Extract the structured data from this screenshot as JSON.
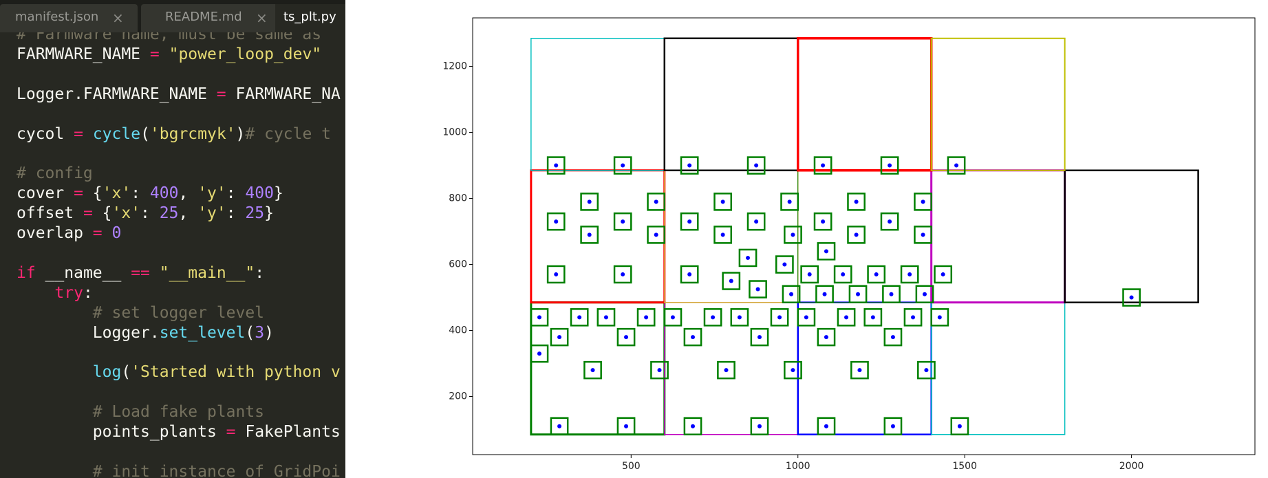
{
  "editor": {
    "tabs": [
      "manifest.json",
      "README.md",
      "ts_plt.py"
    ],
    "lines": [
      [
        [
          "# Farmware name, must be same as",
          "#75715e"
        ]
      ],
      [
        [
          "FARMWARE_NAME ",
          "#f8f8f2"
        ],
        [
          "=",
          "#f92672"
        ],
        [
          " ",
          "#f8f8f2"
        ],
        [
          "\"power_loop_dev\"",
          "#e6db74"
        ]
      ],
      [],
      [
        [
          "Logger.FARMWARE_NAME ",
          "#f8f8f2"
        ],
        [
          "=",
          "#f92672"
        ],
        [
          " FARMWARE_NA",
          "#f8f8f2"
        ]
      ],
      [],
      [
        [
          "cycol ",
          "#f8f8f2"
        ],
        [
          "=",
          "#f92672"
        ],
        [
          " ",
          "#f8f8f2"
        ],
        [
          "cycle",
          "#66d9ef"
        ],
        [
          "(",
          "#f8f8f2"
        ],
        [
          "'bgrcmyk'",
          "#e6db74"
        ],
        [
          ")",
          "#f8f8f2"
        ],
        [
          "# cycle t",
          "#75715e"
        ]
      ],
      [],
      [
        [
          "# config",
          "#75715e"
        ]
      ],
      [
        [
          "cover ",
          "#f8f8f2"
        ],
        [
          "=",
          "#f92672"
        ],
        [
          " {",
          "#f8f8f2"
        ],
        [
          "'x'",
          "#e6db74"
        ],
        [
          ": ",
          "#f8f8f2"
        ],
        [
          "400",
          "#ae81ff"
        ],
        [
          ", ",
          "#f8f8f2"
        ],
        [
          "'y'",
          "#e6db74"
        ],
        [
          ": ",
          "#f8f8f2"
        ],
        [
          "400",
          "#ae81ff"
        ],
        [
          "}",
          "#f8f8f2"
        ]
      ],
      [
        [
          "offset ",
          "#f8f8f2"
        ],
        [
          "=",
          "#f92672"
        ],
        [
          " {",
          "#f8f8f2"
        ],
        [
          "'x'",
          "#e6db74"
        ],
        [
          ": ",
          "#f8f8f2"
        ],
        [
          "25",
          "#ae81ff"
        ],
        [
          ", ",
          "#f8f8f2"
        ],
        [
          "'y'",
          "#e6db74"
        ],
        [
          ": ",
          "#f8f8f2"
        ],
        [
          "25",
          "#ae81ff"
        ],
        [
          "}",
          "#f8f8f2"
        ]
      ],
      [
        [
          "overlap ",
          "#f8f8f2"
        ],
        [
          "=",
          "#f92672"
        ],
        [
          " ",
          "#f8f8f2"
        ],
        [
          "0",
          "#ae81ff"
        ]
      ],
      [],
      [
        [
          "if",
          "#f92672"
        ],
        [
          " __name__ ",
          "#f8f8f2"
        ],
        [
          "==",
          "#f92672"
        ],
        [
          " ",
          "#f8f8f2"
        ],
        [
          "\"__main__\"",
          "#e6db74"
        ],
        [
          ":",
          "#f8f8f2"
        ]
      ],
      [
        [
          "    ",
          "#f8f8f2"
        ],
        [
          "try",
          "#f92672"
        ],
        [
          ":",
          "#f8f8f2"
        ]
      ],
      [
        [
          "        # set logger level",
          "#75715e"
        ]
      ],
      [
        [
          "        Logger.",
          "#f8f8f2"
        ],
        [
          "set_level",
          "#66d9ef"
        ],
        [
          "(",
          "#f8f8f2"
        ],
        [
          "3",
          "#ae81ff"
        ],
        [
          ")",
          "#f8f8f2"
        ]
      ],
      [],
      [
        [
          "        ",
          "#f8f8f2"
        ],
        [
          "log",
          "#66d9ef"
        ],
        [
          "(",
          "#f8f8f2"
        ],
        [
          "'Started with python v",
          "#e6db74"
        ]
      ],
      [],
      [
        [
          "        # Load fake plants",
          "#75715e"
        ]
      ],
      [
        [
          "        points_plants ",
          "#f8f8f2"
        ],
        [
          "=",
          "#f92672"
        ],
        [
          " FakePlants",
          "#f8f8f2"
        ]
      ],
      [],
      [
        [
          "        # init instance of GridPoi",
          "#75715e"
        ]
      ]
    ]
  },
  "chart_data": {
    "type": "scatter",
    "xlim": [
      25,
      2370
    ],
    "ylim": [
      24,
      1347
    ],
    "xticks": [
      500,
      1000,
      1500,
      2000
    ],
    "yticks": [
      200,
      400,
      600,
      800,
      1000,
      1200
    ],
    "color": "#0000ff",
    "marker_box": {
      "size": 50,
      "color": "#008000"
    },
    "x": [
      275,
      475,
      675,
      875,
      1075,
      1275,
      1475,
      375,
      575,
      775,
      975,
      1175,
      1375,
      275,
      475,
      675,
      875,
      1075,
      1275,
      375,
      575,
      775,
      985,
      1175,
      1375,
      1085,
      850,
      960,
      275,
      475,
      675,
      1035,
      1135,
      1235,
      1335,
      1435,
      800,
      880,
      980,
      1080,
      1180,
      1280,
      1380,
      2000,
      225,
      345,
      425,
      545,
      625,
      745,
      825,
      945,
      1025,
      1145,
      1225,
      1345,
      1425,
      285,
      485,
      685,
      885,
      1085,
      1285,
      225,
      385,
      585,
      785,
      985,
      1185,
      1385,
      285,
      485,
      685,
      885,
      1085,
      1285,
      1485
    ],
    "values": [
      900,
      900,
      900,
      900,
      900,
      900,
      900,
      790,
      790,
      790,
      790,
      790,
      790,
      730,
      730,
      730,
      730,
      730,
      730,
      690,
      690,
      690,
      690,
      690,
      690,
      640,
      620,
      600,
      570,
      570,
      570,
      570,
      570,
      570,
      570,
      570,
      550,
      525,
      510,
      510,
      510,
      510,
      510,
      500,
      440,
      440,
      440,
      440,
      440,
      440,
      440,
      440,
      440,
      440,
      440,
      440,
      440,
      380,
      380,
      380,
      380,
      380,
      380,
      330,
      280,
      280,
      280,
      280,
      280,
      280,
      110,
      110,
      110,
      110,
      110,
      110,
      110
    ],
    "rectangles": [
      {
        "x": 200,
        "y": 85,
        "width": 400,
        "height": 400,
        "color": "#008000",
        "linewidth": 3
      },
      {
        "x": 600,
        "y": 85,
        "width": 400,
        "height": 400,
        "color": "#bf00bf",
        "linewidth": 1.5
      },
      {
        "x": 1000,
        "y": 85,
        "width": 400,
        "height": 400,
        "color": "#0000ff",
        "linewidth": 2.5
      },
      {
        "x": 1400,
        "y": 85,
        "width": 400,
        "height": 400,
        "color": "#00bfbf",
        "linewidth": 1.5
      },
      {
        "x": 200,
        "y": 485,
        "width": 400,
        "height": 400,
        "color": "#ff0000",
        "linewidth": 3
      },
      {
        "x": 600,
        "y": 485,
        "width": 400,
        "height": 400,
        "color": "#d4a83a",
        "linewidth": 1.5
      },
      {
        "x": 1000,
        "y": 485,
        "width": 400,
        "height": 400,
        "color": "#008000",
        "linewidth": 1
      },
      {
        "x": 1400,
        "y": 485,
        "width": 400,
        "height": 400,
        "color": "#bf00bf",
        "linewidth": 3
      },
      {
        "x": 1800,
        "y": 485,
        "width": 400,
        "height": 400,
        "color": "#000000",
        "linewidth": 2.5
      },
      {
        "x": 200,
        "y": 885,
        "width": 400,
        "height": 400,
        "color": "#00bfbf",
        "linewidth": 1.5
      },
      {
        "x": 600,
        "y": 885,
        "width": 400,
        "height": 400,
        "color": "#000000",
        "linewidth": 2.5
      },
      {
        "x": 1000,
        "y": 885,
        "width": 400,
        "height": 400,
        "color": "#ff0000",
        "linewidth": 3.5
      },
      {
        "x": 1400,
        "y": 885,
        "width": 400,
        "height": 400,
        "color": "#bfbf00",
        "linewidth": 2
      }
    ]
  }
}
